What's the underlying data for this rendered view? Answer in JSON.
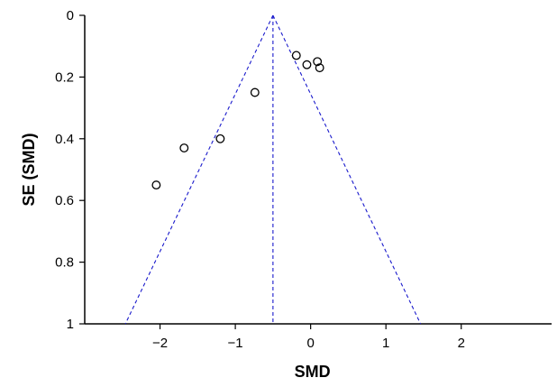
{
  "chart_data": {
    "type": "scatter",
    "title": "",
    "xlabel": "SMD",
    "ylabel": "SE (SMD)",
    "xlim": [
      -3.0,
      3.2
    ],
    "ylim": [
      0,
      1
    ],
    "y_inverted": true,
    "grid": false,
    "x_ticks": [
      -2,
      -1,
      0,
      1,
      2
    ],
    "x_tick_labels": [
      "−2",
      "−1",
      "0",
      "1",
      "2"
    ],
    "y_ticks": [
      0,
      0.2,
      0.4,
      0.6,
      0.8,
      1
    ],
    "y_tick_labels": [
      "0",
      "0.2",
      "0.4",
      "0.6",
      "0.8",
      "1"
    ],
    "pooled_estimate": -0.5,
    "funnel_bounds": [
      {
        "x": [
          -0.5,
          -2.46
        ],
        "y": [
          0,
          1
        ]
      },
      {
        "x": [
          -0.5,
          1.46
        ],
        "y": [
          0,
          1
        ]
      }
    ],
    "points": {
      "x": [
        -2.05,
        -1.68,
        -1.2,
        -0.74,
        -0.19,
        -0.05,
        0.09,
        0.12
      ],
      "y": [
        0.55,
        0.43,
        0.4,
        0.25,
        0.13,
        0.16,
        0.15,
        0.17
      ]
    },
    "colors": {
      "funnel": "#1a1acc",
      "points": "#000000",
      "axis": "#000000"
    }
  }
}
